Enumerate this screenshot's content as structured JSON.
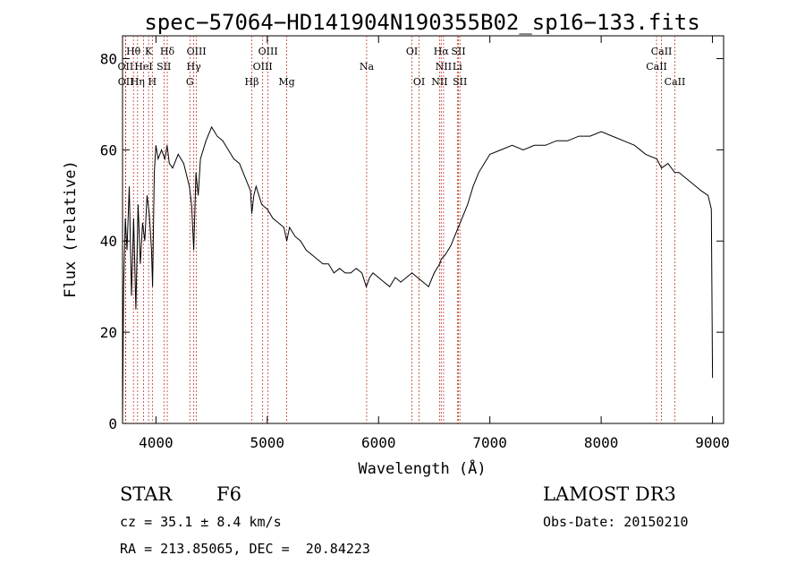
{
  "chart_data": {
    "type": "line",
    "title": "spec−57064−HD141904N190355B02_sp16−133.fits",
    "xlabel": "Wavelength (Å)",
    "ylabel": "Flux (relative)",
    "xlim": [
      3700,
      9100
    ],
    "ylim": [
      0,
      85
    ],
    "xticks": [
      4000,
      5000,
      6000,
      7000,
      8000,
      9000
    ],
    "yticks": [
      0,
      20,
      40,
      60,
      80
    ],
    "grid": false,
    "series": [
      {
        "x": [
          3700,
          3710,
          3725,
          3740,
          3760,
          3780,
          3800,
          3820,
          3840,
          3860,
          3880,
          3900,
          3920,
          3940,
          3960,
          3970,
          3985,
          4000,
          4020,
          4050,
          4080,
          4100,
          4120,
          4150,
          4200,
          4250,
          4300,
          4320,
          4340,
          4360,
          4380,
          4400,
          4450,
          4500,
          4550,
          4600,
          4650,
          4700,
          4750,
          4800,
          4850,
          4861,
          4880,
          4900,
          4950,
          5000,
          5050,
          5100,
          5150,
          5175,
          5200,
          5250,
          5300,
          5350,
          5400,
          5450,
          5500,
          5550,
          5600,
          5650,
          5700,
          5750,
          5800,
          5850,
          5890,
          5920,
          5950,
          6000,
          6050,
          6100,
          6150,
          6200,
          6250,
          6300,
          6350,
          6400,
          6450,
          6500,
          6550,
          6563,
          6600,
          6650,
          6700,
          6750,
          6800,
          6850,
          6900,
          6950,
          7000,
          7100,
          7200,
          7300,
          7400,
          7500,
          7600,
          7700,
          7800,
          7900,
          8000,
          8100,
          8200,
          8300,
          8400,
          8500,
          8542,
          8600,
          8662,
          8700,
          8800,
          8900,
          8960,
          8990,
          8995,
          9000
        ],
        "y": [
          0,
          30,
          45,
          38,
          52,
          28,
          45,
          25,
          48,
          35,
          44,
          40,
          50,
          46,
          38,
          30,
          55,
          61,
          58,
          60,
          58,
          61,
          57,
          56,
          59,
          57,
          52,
          48,
          38,
          55,
          50,
          58,
          62,
          65,
          63,
          62,
          60,
          58,
          57,
          54,
          51,
          46,
          50,
          52,
          48,
          47,
          45,
          44,
          43,
          40,
          43,
          41,
          40,
          38,
          37,
          36,
          35,
          35,
          33,
          34,
          33,
          33,
          34,
          33,
          30,
          32,
          33,
          32,
          31,
          30,
          32,
          31,
          32,
          33,
          32,
          31,
          30,
          33,
          35,
          36,
          37,
          39,
          42,
          45,
          48,
          52,
          55,
          57,
          59,
          60,
          61,
          60,
          61,
          61,
          62,
          62,
          63,
          63,
          64,
          63,
          62,
          61,
          59,
          58,
          56,
          57,
          55,
          55,
          53,
          51,
          50,
          47,
          30,
          10
        ]
      }
    ],
    "spectral_lines": [
      {
        "label": "Hθ",
        "x": 3798,
        "row": 0
      },
      {
        "label": "K",
        "x": 3934,
        "row": 0
      },
      {
        "label": "Hδ",
        "x": 4102,
        "row": 0
      },
      {
        "label": "OIII",
        "x": 4364,
        "row": 0
      },
      {
        "label": "OIII",
        "x": 5007,
        "row": 0
      },
      {
        "label": "OI",
        "x": 6300,
        "row": 0
      },
      {
        "label": "Hα",
        "x": 6563,
        "row": 0
      },
      {
        "label": "SII",
        "x": 6717,
        "row": 0
      },
      {
        "label": "CaII",
        "x": 8542,
        "row": 0
      },
      {
        "label": "OII",
        "x": 3727,
        "row": 1
      },
      {
        "label": "HeI",
        "x": 3889,
        "row": 1
      },
      {
        "label": "SII",
        "x": 4072,
        "row": 1
      },
      {
        "label": "Hγ",
        "x": 4340,
        "row": 1
      },
      {
        "label": "OIII",
        "x": 4959,
        "row": 1
      },
      {
        "label": "Na",
        "x": 5893,
        "row": 1
      },
      {
        "label": "NII",
        "x": 6584,
        "row": 1
      },
      {
        "label": "Li",
        "x": 6708,
        "row": 1
      },
      {
        "label": "CaII",
        "x": 8498,
        "row": 1
      },
      {
        "label": "OII",
        "x": 3729,
        "row": 2
      },
      {
        "label": "Hη",
        "x": 3835,
        "row": 2
      },
      {
        "label": "H",
        "x": 3968,
        "row": 2
      },
      {
        "label": "G",
        "x": 4305,
        "row": 2
      },
      {
        "label": "Hβ",
        "x": 4861,
        "row": 2
      },
      {
        "label": "Mg",
        "x": 5175,
        "row": 2
      },
      {
        "label": "OI",
        "x": 6364,
        "row": 2
      },
      {
        "label": "NII",
        "x": 6548,
        "row": 2
      },
      {
        "label": "SII",
        "x": 6731,
        "row": 2
      },
      {
        "label": "CaII",
        "x": 8662,
        "row": 2
      }
    ]
  },
  "info": {
    "object_type": "STAR",
    "subclass": "F6",
    "survey": "LAMOST DR3",
    "cz": "cz = 35.1 ± 8.4 km/s",
    "obs_date": "Obs-Date: 20150210",
    "coords": "RA = 213.85065, DEC =  20.84223"
  }
}
